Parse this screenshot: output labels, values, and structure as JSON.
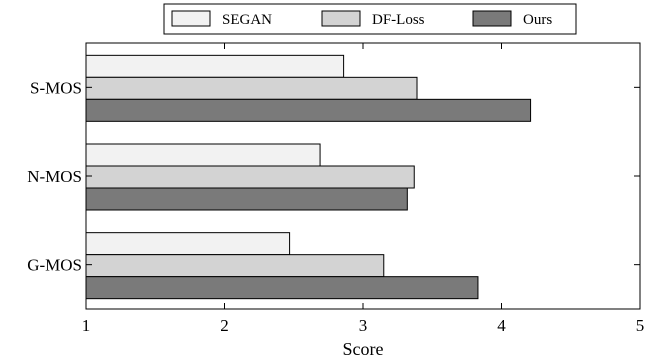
{
  "chart_data": {
    "type": "bar",
    "orientation": "horizontal",
    "categories": [
      "S-MOS",
      "N-MOS",
      "G-MOS"
    ],
    "series": [
      {
        "name": "SEGAN",
        "values": [
          2.86,
          2.69,
          2.47
        ],
        "color": "#f2f2f2"
      },
      {
        "name": "DF-Loss",
        "values": [
          3.39,
          3.37,
          3.15
        ],
        "color": "#d3d3d3"
      },
      {
        "name": "Ours",
        "values": [
          4.21,
          3.32,
          3.83
        ],
        "color": "#7a7a7a"
      }
    ],
    "xlabel": "Score",
    "ylabel": "",
    "xlim": [
      1,
      5
    ],
    "xticks": [
      "1",
      "2",
      "3",
      "4",
      "5"
    ],
    "legend_position": "top-center",
    "grid": false
  }
}
